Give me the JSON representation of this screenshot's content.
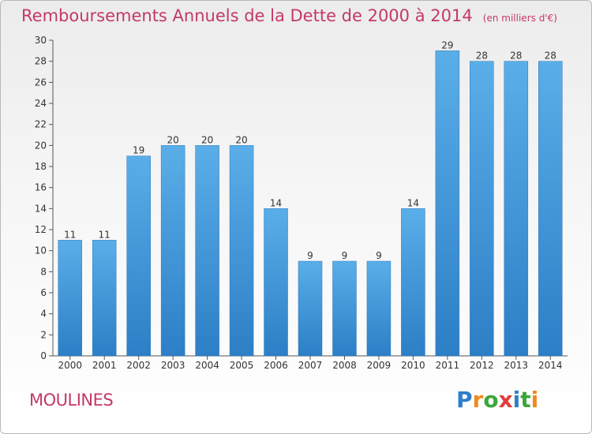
{
  "chart_data": {
    "type": "bar",
    "title": "Remboursements Annuels de la Dette de 2000 à 2014",
    "unit": "(en milliers d'€)",
    "categories": [
      "2000",
      "2001",
      "2002",
      "2003",
      "2004",
      "2005",
      "2006",
      "2007",
      "2008",
      "2009",
      "2010",
      "2011",
      "2012",
      "2013",
      "2014"
    ],
    "values": [
      11,
      11,
      19,
      20,
      20,
      20,
      14,
      9,
      9,
      9,
      14,
      29,
      28,
      28,
      28
    ],
    "data_labels": [
      "11",
      "11",
      "19",
      "20",
      "20",
      "20",
      "14",
      "9",
      "9",
      "9",
      "14",
      "29",
      "28",
      "28",
      "28"
    ],
    "ylim": [
      0,
      30
    ],
    "yticks": [
      "0",
      "2",
      "4",
      "6",
      "8",
      "10",
      "12",
      "14",
      "16",
      "18",
      "20",
      "22",
      "24",
      "26",
      "28",
      "30"
    ],
    "xlabel": "",
    "ylabel": "",
    "grid": false,
    "bar_color": "#4a9fe0"
  },
  "commune": "MOULINES",
  "logo": {
    "letters": [
      "P",
      "r",
      "o",
      "x",
      "i",
      "t",
      "i"
    ],
    "colors": [
      "#2e7fc9",
      "#f08a1c",
      "#3aa63a",
      "#e23b3b",
      "#2e7fc9",
      "#3aa63a",
      "#f08a1c"
    ]
  }
}
